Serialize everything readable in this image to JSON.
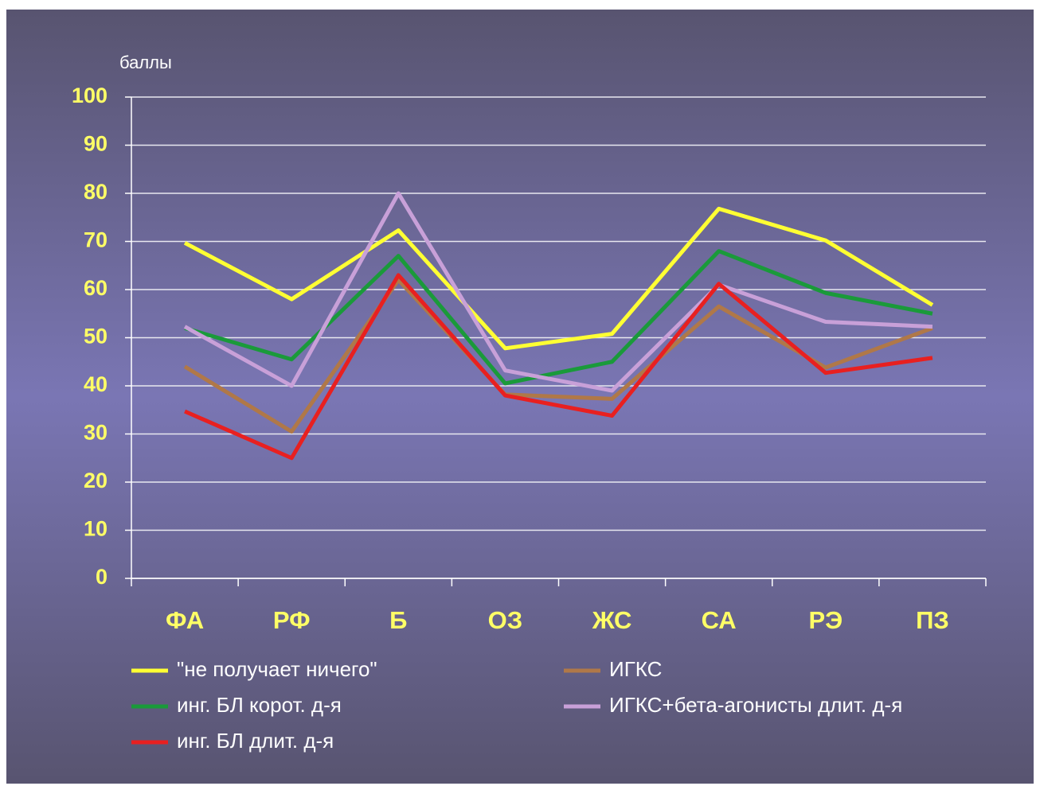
{
  "chart_data": {
    "type": "line",
    "y_axis_label": "баллы",
    "categories": [
      "ФА",
      "РФ",
      "Б",
      "ОЗ",
      "ЖС",
      "СА",
      "РЭ",
      "ПЗ"
    ],
    "series": [
      {
        "name": "\"не получает ничего\"",
        "color": "#ffff33",
        "values": [
          69.7,
          58,
          72.3,
          47.8,
          50.8,
          76.8,
          70.2,
          56.8
        ]
      },
      {
        "name": "ИГКС",
        "color": "#b07848",
        "values": [
          44,
          30.5,
          62,
          38.2,
          37.3,
          56.5,
          43.8,
          52
        ]
      },
      {
        "name": "инг. БЛ корот. д-я",
        "color": "#1a9a3a",
        "values": [
          52,
          45.5,
          67,
          40.5,
          45,
          68,
          59.3,
          55
        ]
      },
      {
        "name": "ИГКС+бета-агонисты длит. д-я",
        "color": "#c8a0d8",
        "values": [
          52.3,
          40,
          80,
          43.2,
          39,
          61,
          53.3,
          52.3
        ]
      },
      {
        "name": "инг. БЛ длит. д-я",
        "color": "#e82020",
        "values": [
          34.7,
          25,
          63,
          38,
          33.8,
          61.2,
          42.7,
          45.8
        ]
      }
    ],
    "ylim": [
      0,
      100
    ],
    "yticks": [
      0,
      10,
      20,
      30,
      40,
      50,
      60,
      70,
      80,
      90,
      100
    ],
    "grid": true
  }
}
